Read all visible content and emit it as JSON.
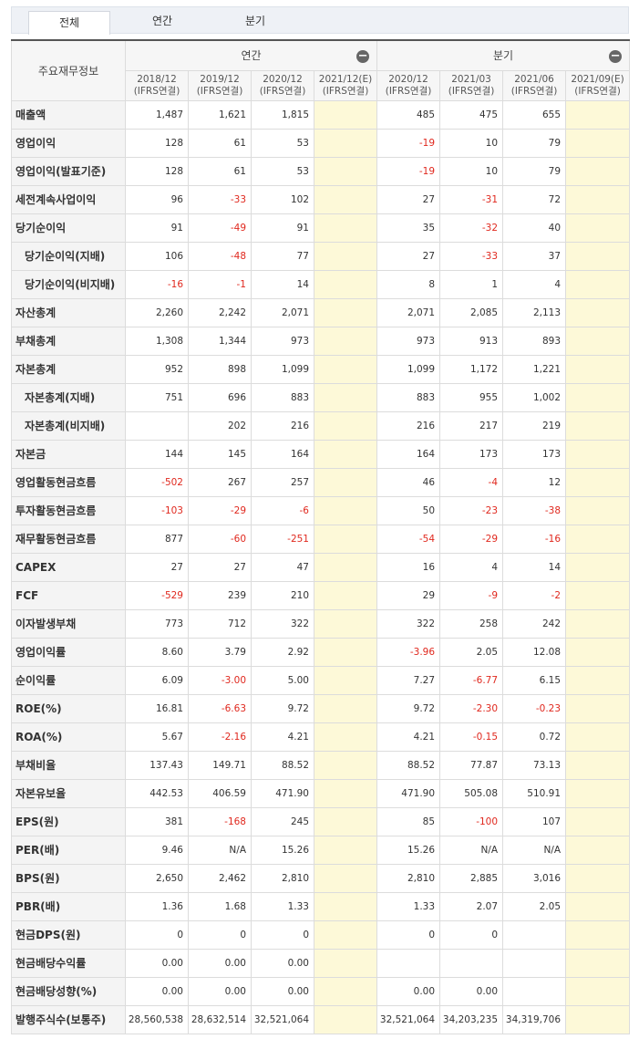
{
  "tabs": [
    {
      "label": "전체",
      "active": true
    },
    {
      "label": "연간",
      "active": false
    },
    {
      "label": "분기",
      "active": false
    }
  ],
  "header": {
    "row_label": "주요재무정보",
    "annual_label": "연간",
    "quarter_label": "분기",
    "columns": [
      {
        "period": "2018/12",
        "basis": "(IFRS연결)"
      },
      {
        "period": "2019/12",
        "basis": "(IFRS연결)"
      },
      {
        "period": "2020/12",
        "basis": "(IFRS연결)"
      },
      {
        "period": "2021/12(E)",
        "basis": "(IFRS연결)"
      },
      {
        "period": "2020/12",
        "basis": "(IFRS연결)"
      },
      {
        "period": "2021/03",
        "basis": "(IFRS연결)"
      },
      {
        "period": "2021/06",
        "basis": "(IFRS연결)"
      },
      {
        "period": "2021/09(E)",
        "basis": "(IFRS연결)"
      }
    ]
  },
  "rows": [
    {
      "label": "매출액",
      "sub": false,
      "values": [
        "1,487",
        "1,621",
        "1,815",
        "",
        "485",
        "475",
        "655",
        ""
      ]
    },
    {
      "label": "영업이익",
      "sub": false,
      "values": [
        "128",
        "61",
        "53",
        "",
        "-19",
        "10",
        "79",
        ""
      ]
    },
    {
      "label": "영업이익(발표기준)",
      "sub": false,
      "values": [
        "128",
        "61",
        "53",
        "",
        "-19",
        "10",
        "79",
        ""
      ]
    },
    {
      "label": "세전계속사업이익",
      "sub": false,
      "values": [
        "96",
        "-33",
        "102",
        "",
        "27",
        "-31",
        "72",
        ""
      ]
    },
    {
      "label": "당기순이익",
      "sub": false,
      "values": [
        "91",
        "-49",
        "91",
        "",
        "35",
        "-32",
        "40",
        ""
      ]
    },
    {
      "label": "당기순이익(지배)",
      "sub": true,
      "values": [
        "106",
        "-48",
        "77",
        "",
        "27",
        "-33",
        "37",
        ""
      ]
    },
    {
      "label": "당기순이익(비지배)",
      "sub": true,
      "values": [
        "-16",
        "-1",
        "14",
        "",
        "8",
        "1",
        "4",
        ""
      ]
    },
    {
      "label": "자산총계",
      "sub": false,
      "values": [
        "2,260",
        "2,242",
        "2,071",
        "",
        "2,071",
        "2,085",
        "2,113",
        ""
      ]
    },
    {
      "label": "부채총계",
      "sub": false,
      "values": [
        "1,308",
        "1,344",
        "973",
        "",
        "973",
        "913",
        "893",
        ""
      ]
    },
    {
      "label": "자본총계",
      "sub": false,
      "values": [
        "952",
        "898",
        "1,099",
        "",
        "1,099",
        "1,172",
        "1,221",
        ""
      ]
    },
    {
      "label": "자본총계(지배)",
      "sub": true,
      "values": [
        "751",
        "696",
        "883",
        "",
        "883",
        "955",
        "1,002",
        ""
      ]
    },
    {
      "label": "자본총계(비지배)",
      "sub": true,
      "values": [
        "",
        "202",
        "216",
        "",
        "216",
        "217",
        "219",
        ""
      ]
    },
    {
      "label": "자본금",
      "sub": false,
      "values": [
        "144",
        "145",
        "164",
        "",
        "164",
        "173",
        "173",
        ""
      ]
    },
    {
      "label": "영업활동현금흐름",
      "sub": false,
      "values": [
        "-502",
        "267",
        "257",
        "",
        "46",
        "-4",
        "12",
        ""
      ]
    },
    {
      "label": "투자활동현금흐름",
      "sub": false,
      "values": [
        "-103",
        "-29",
        "-6",
        "",
        "50",
        "-23",
        "-38",
        ""
      ]
    },
    {
      "label": "재무활동현금흐름",
      "sub": false,
      "values": [
        "877",
        "-60",
        "-251",
        "",
        "-54",
        "-29",
        "-16",
        ""
      ]
    },
    {
      "label": "CAPEX",
      "sub": false,
      "values": [
        "27",
        "27",
        "47",
        "",
        "16",
        "4",
        "14",
        ""
      ]
    },
    {
      "label": "FCF",
      "sub": false,
      "values": [
        "-529",
        "239",
        "210",
        "",
        "29",
        "-9",
        "-2",
        ""
      ]
    },
    {
      "label": "이자발생부채",
      "sub": false,
      "values": [
        "773",
        "712",
        "322",
        "",
        "322",
        "258",
        "242",
        ""
      ]
    },
    {
      "label": "영업이익률",
      "sub": false,
      "values": [
        "8.60",
        "3.79",
        "2.92",
        "",
        "-3.96",
        "2.05",
        "12.08",
        ""
      ]
    },
    {
      "label": "순이익률",
      "sub": false,
      "values": [
        "6.09",
        "-3.00",
        "5.00",
        "",
        "7.27",
        "-6.77",
        "6.15",
        ""
      ]
    },
    {
      "label": "ROE(%)",
      "sub": false,
      "values": [
        "16.81",
        "-6.63",
        "9.72",
        "",
        "9.72",
        "-2.30",
        "-0.23",
        ""
      ]
    },
    {
      "label": "ROA(%)",
      "sub": false,
      "values": [
        "5.67",
        "-2.16",
        "4.21",
        "",
        "4.21",
        "-0.15",
        "0.72",
        ""
      ]
    },
    {
      "label": "부채비율",
      "sub": false,
      "values": [
        "137.43",
        "149.71",
        "88.52",
        "",
        "88.52",
        "77.87",
        "73.13",
        ""
      ]
    },
    {
      "label": "자본유보율",
      "sub": false,
      "values": [
        "442.53",
        "406.59",
        "471.90",
        "",
        "471.90",
        "505.08",
        "510.91",
        ""
      ]
    },
    {
      "label": "EPS(원)",
      "sub": false,
      "values": [
        "381",
        "-168",
        "245",
        "",
        "85",
        "-100",
        "107",
        ""
      ]
    },
    {
      "label": "PER(배)",
      "sub": false,
      "values": [
        "9.46",
        "N/A",
        "15.26",
        "",
        "15.26",
        "N/A",
        "N/A",
        ""
      ]
    },
    {
      "label": "BPS(원)",
      "sub": false,
      "values": [
        "2,650",
        "2,462",
        "2,810",
        "",
        "2,810",
        "2,885",
        "3,016",
        ""
      ]
    },
    {
      "label": "PBR(배)",
      "sub": false,
      "values": [
        "1.36",
        "1.68",
        "1.33",
        "",
        "1.33",
        "2.07",
        "2.05",
        ""
      ]
    },
    {
      "label": "현금DPS(원)",
      "sub": false,
      "values": [
        "0",
        "0",
        "0",
        "",
        "0",
        "0",
        "",
        ""
      ]
    },
    {
      "label": "현금배당수익률",
      "sub": false,
      "values": [
        "0.00",
        "0.00",
        "0.00",
        "",
        "",
        "",
        "",
        ""
      ]
    },
    {
      "label": "현금배당성향(%)",
      "sub": false,
      "values": [
        "0.00",
        "0.00",
        "0.00",
        "",
        "0.00",
        "0.00",
        "",
        ""
      ]
    },
    {
      "label": "발행주식수(보통주)",
      "sub": false,
      "values": [
        "28,560,538",
        "28,632,514",
        "32,521,064",
        "",
        "32,521,064",
        "34,203,235",
        "34,319,706",
        ""
      ]
    }
  ],
  "colors": {
    "negative": "#e0281e",
    "estimate_bg": "#fdf9d8"
  },
  "icons": {
    "collapse": "minus-circle-icon"
  }
}
